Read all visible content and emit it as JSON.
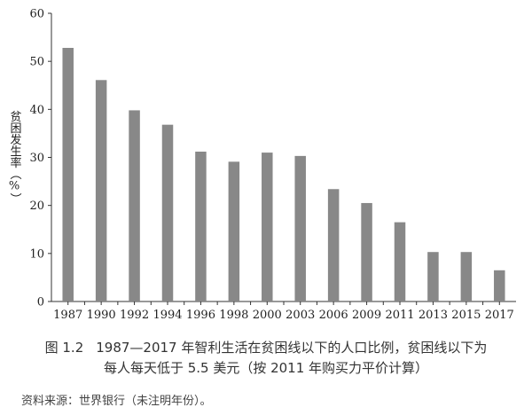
{
  "chart_data": {
    "type": "bar",
    "categories": [
      "1987",
      "1990",
      "1992",
      "1994",
      "1996",
      "1998",
      "2000",
      "2003",
      "2006",
      "2009",
      "2011",
      "2013",
      "2015",
      "2017"
    ],
    "values": [
      52.8,
      46.1,
      39.8,
      36.8,
      31.2,
      29.1,
      31.0,
      30.3,
      23.4,
      20.5,
      16.5,
      10.3,
      10.3,
      6.5
    ],
    "ylabel": "贫困发生率（%）",
    "xlabel": "",
    "ylim": [
      0,
      60
    ],
    "yticks": [
      0,
      10,
      20,
      30,
      40,
      50,
      60
    ],
    "grid": false,
    "bar_color": "#888888"
  },
  "caption": {
    "figure_number": "图 1.2",
    "line1": "1987—2017 年智利生活在贫困线以下的人口比例，贫困线以下为",
    "line2": "每人每天低于 5.5 美元（按 2011 年购买力平价计算）"
  },
  "source": "资料来源：世界银行（未注明年份）。"
}
